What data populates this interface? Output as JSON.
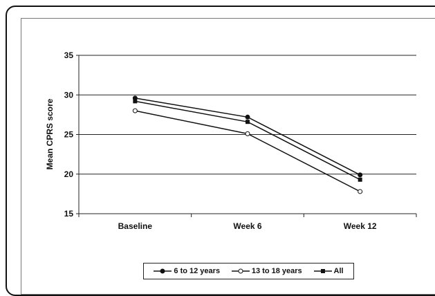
{
  "chart_data": {
    "type": "line",
    "categories": [
      "Baseline",
      "Week 6",
      "Week 12"
    ],
    "ylabel": "Mean CPRS score",
    "xlabel": "",
    "ylim": [
      15,
      35
    ],
    "yticks": [
      15,
      20,
      25,
      30,
      35
    ],
    "grid": true,
    "legend_position": "bottom",
    "series": [
      {
        "name": "6 to 12 years",
        "values": [
          29.6,
          27.2,
          19.9
        ],
        "marker": "filled-circle",
        "color": "#111111"
      },
      {
        "name": "13 to 18 years",
        "values": [
          28.0,
          25.1,
          17.8
        ],
        "marker": "open-circle",
        "color": "#111111"
      },
      {
        "name": "All",
        "values": [
          29.2,
          26.6,
          19.3
        ],
        "marker": "filled-square",
        "color": "#111111"
      }
    ]
  }
}
